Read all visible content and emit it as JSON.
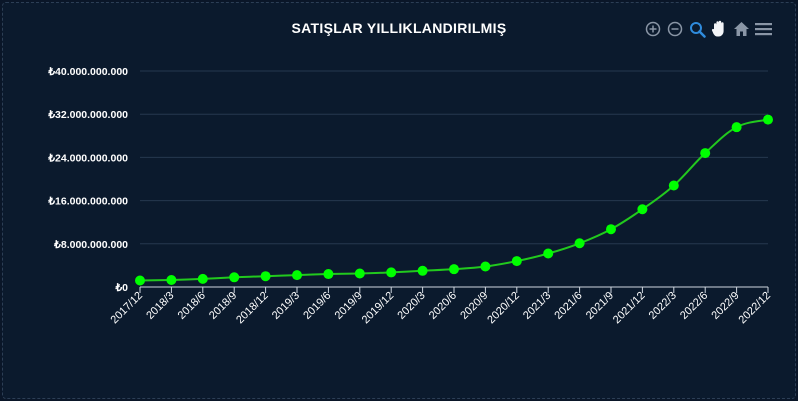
{
  "chart_data": {
    "type": "line",
    "title": "SATIŞLAR YILLIKLANDIRILMIŞ",
    "categories": [
      "2017/12",
      "2018/3",
      "2018/6",
      "2018/9",
      "2018/12",
      "2019/3",
      "2019/6",
      "2019/9",
      "2019/12",
      "2020/3",
      "2020/6",
      "2020/9",
      "2020/12",
      "2021/3",
      "2021/6",
      "2021/9",
      "2021/12",
      "2022/3",
      "2022/6",
      "2022/9",
      "2022/12"
    ],
    "series": [
      {
        "values": [
          1200000000,
          1300000000,
          1500000000,
          1800000000,
          2000000000,
          2200000000,
          2400000000,
          2500000000,
          2700000000,
          3000000000,
          3300000000,
          3800000000,
          4800000000,
          6200000000,
          8100000000,
          10700000000,
          14400000000,
          18800000000,
          24800000000,
          29600000000,
          31000000000
        ]
      }
    ],
    "y_tick_labels": [
      "₺0",
      "₺8.000.000.000",
      "₺16.000.000.000",
      "₺24.000.000.000",
      "₺32.000.000.000",
      "₺40.000.000.000"
    ],
    "y_tick_values": [
      0,
      8000000000,
      16000000000,
      24000000000,
      32000000000,
      40000000000
    ],
    "ylim": [
      0,
      40000000000
    ],
    "grid": true,
    "xlabel": "",
    "ylabel": ""
  },
  "colors": {
    "background": "#0b1a2d",
    "line": "#22c91e",
    "marker": "#00ff00",
    "grid": "#26384f",
    "axis": "#cfd6df",
    "tool_icon": "#8a96a6",
    "tool_active": "#2f8bdc"
  },
  "toolbar": [
    {
      "icon": "zoom-in-icon",
      "active": false
    },
    {
      "icon": "zoom-out-icon",
      "active": false
    },
    {
      "icon": "selection-zoom-icon",
      "active": true
    },
    {
      "icon": "pan-hand-icon",
      "active": false
    },
    {
      "icon": "reset-home-icon",
      "active": false
    },
    {
      "icon": "menu-icon",
      "active": false
    }
  ]
}
